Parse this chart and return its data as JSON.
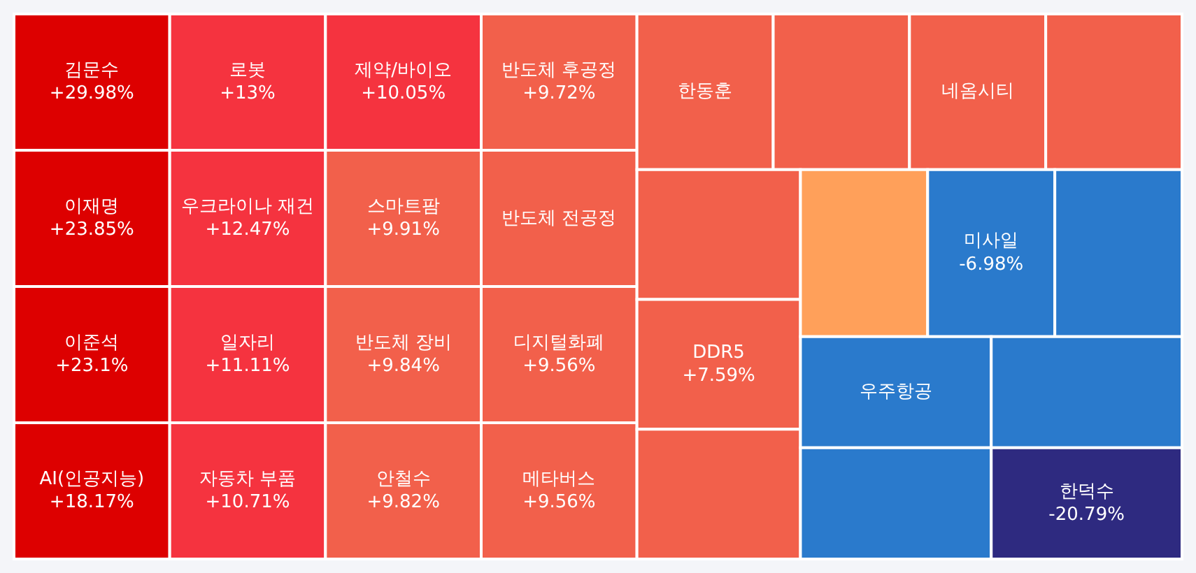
{
  "chart_data": {
    "type": "other",
    "categories": [
      "김문수",
      "이재명",
      "이준석",
      "AI(인공지능)",
      "로봇",
      "우크라이나 재건",
      "일자리",
      "자동차 부품",
      "제약/바이오",
      "스마트팜",
      "반도체 장비",
      "안철수",
      "반도체 후공정",
      "반도체 전공정",
      "디지털화폐",
      "메타버스",
      "한동훈",
      null,
      "네옴시티",
      null,
      null,
      "DDR5",
      null,
      null,
      "미사일",
      null,
      "우주항공",
      null,
      null,
      "한덕수"
    ],
    "values": [
      29.98,
      23.85,
      23.1,
      18.17,
      13,
      12.47,
      11.11,
      10.71,
      10.05,
      9.91,
      9.84,
      9.82,
      9.72,
      null,
      9.56,
      9.56,
      null,
      null,
      null,
      null,
      null,
      7.59,
      null,
      null,
      -6.98,
      null,
      null,
      null,
      null,
      -20.79
    ],
    "value_labels": [
      "+29.98%",
      "+23.85%",
      "+23.1%",
      "+18.17%",
      "+13%",
      "+12.47%",
      "+11.11%",
      "+10.71%",
      "+10.05%",
      "+9.91%",
      "+9.84%",
      "+9.82%",
      "+9.72%",
      null,
      "+9.56%",
      "+9.56%",
      null,
      null,
      null,
      null,
      null,
      "+7.59%",
      null,
      null,
      "-6.98%",
      null,
      null,
      null,
      null,
      "-20.79%"
    ],
    "colors": [
      "#dd0000",
      "#dd0000",
      "#dd0000",
      "#dd0000",
      "#f5333f",
      "#f5333f",
      "#f5333f",
      "#f5333f",
      "#f5333f",
      "#f2604b",
      "#f2604b",
      "#f2604b",
      "#f2604b",
      "#f2604b",
      "#f2604b",
      "#f2604b",
      "#f2604b",
      "#f2604b",
      "#f2604b",
      "#f2604b",
      "#f2604b",
      "#f2604b",
      "#f2604b",
      "#ffa05a",
      "#2a7acc",
      "#2a7acc",
      "#2a7acc",
      "#2a7acc",
      "#2a7acc",
      "#2e2a80"
    ]
  }
}
